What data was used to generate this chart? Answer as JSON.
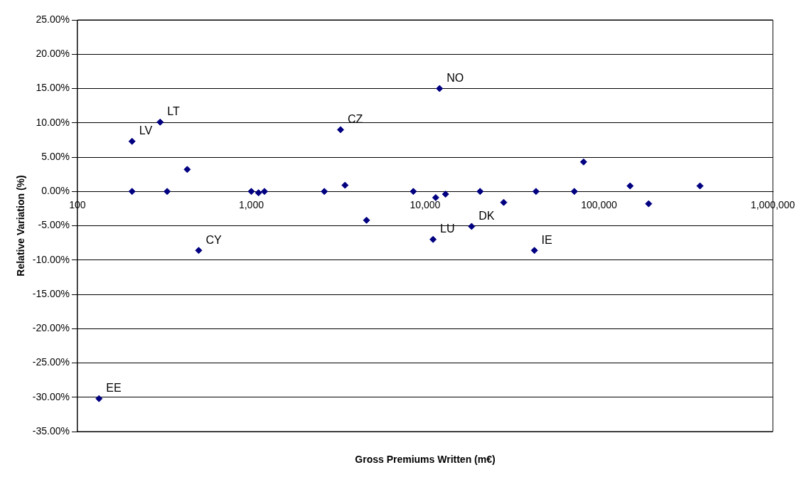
{
  "chart_data": {
    "type": "scatter",
    "xlabel": "Gross Premiums Written (m€)",
    "ylabel": "Relative Variation (%)",
    "x": [
      206,
      206,
      299,
      328,
      428,
      498,
      1000,
      1100,
      1190,
      2630,
      3260,
      3460,
      4600,
      8550,
      11500,
      11100,
      12100,
      13100,
      18500,
      20700,
      28300,
      43400,
      42500,
      72100,
      81500,
      151000,
      193000,
      381000,
      133
    ],
    "series": [
      {
        "color": "#000080",
        "values": [
          7.3,
          0,
          10.1,
          0,
          3.2,
          -8.6,
          0,
          -0.2,
          0,
          0,
          9.0,
          0.9,
          -4.2,
          0,
          -0.9,
          -7.0,
          15.0,
          -0.4,
          -5.1,
          0,
          -1.6,
          0,
          -8.6,
          0,
          4.3,
          0.8,
          -1.8,
          0.8,
          -30.2
        ]
      }
    ],
    "log": "x",
    "marker": "diamond",
    "grid": "y",
    "legend": false,
    "xlim": [
      100,
      1000000
    ],
    "xticks": [
      100,
      {
        "value": 1000,
        "label": "1,000"
      },
      {
        "value": 10000,
        "label": "10,000"
      },
      {
        "value": 100000,
        "label": "100,000"
      },
      {
        "value": 1000000,
        "label": "1,000,000"
      }
    ],
    "ylim": [
      -35,
      25
    ],
    "yticks": [
      {
        "value": -35,
        "label": "-35.00%"
      },
      {
        "value": -30,
        "label": "-30.00%"
      },
      {
        "value": -25,
        "label": "-25.00%"
      },
      {
        "value": -20,
        "label": "-20.00%"
      },
      {
        "value": -15,
        "label": "-15.00%"
      },
      {
        "value": -10,
        "label": "-10.00%"
      },
      {
        "value": -5,
        "label": "-5.00%"
      },
      {
        "value": 0,
        "label": "0.00%"
      },
      {
        "value": 5,
        "label": "5.00%"
      },
      {
        "value": 10,
        "label": "10.00%"
      },
      {
        "value": 15,
        "label": "15.00%"
      },
      {
        "value": 20,
        "label": "20.00%"
      },
      {
        "value": 25,
        "label": "25.00%"
      }
    ],
    "annotations": [
      {
        "text": "LV",
        "x": 206,
        "y": 7.3
      },
      {
        "text": "LT",
        "x": 299,
        "y": 10.1
      },
      {
        "text": "CY",
        "x": 498,
        "y": -8.6
      },
      {
        "text": "CZ",
        "x": 3260,
        "y": 9.0
      },
      {
        "text": "NO",
        "x": 12100,
        "y": 15.0
      },
      {
        "text": "LU",
        "x": 11100,
        "y": -7.0
      },
      {
        "text": "DK",
        "x": 18500,
        "y": -5.1
      },
      {
        "text": "IE",
        "x": 42500,
        "y": -8.6
      },
      {
        "text": "EE",
        "x": 133,
        "y": -30.2
      }
    ]
  }
}
